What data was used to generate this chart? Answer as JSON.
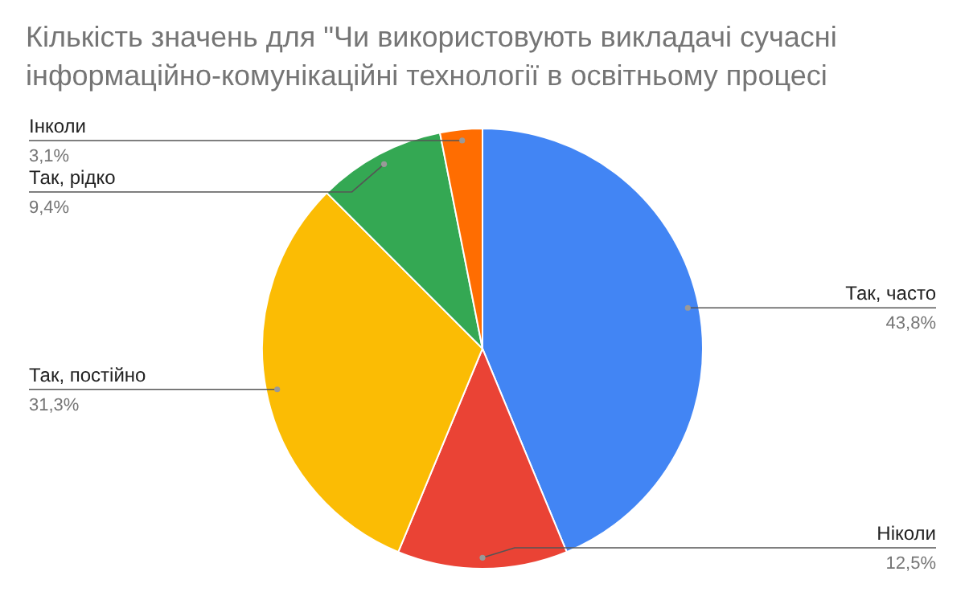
{
  "chart_data": {
    "type": "pie",
    "title": "Кількість значень для \"Чи використовують викладачі сучасні інформаційно-комунікаційні технології в освітньому процесі",
    "categories": [
      "Так, часто",
      "Ніколи",
      "Так, постійно",
      "Так, рідко",
      "Інколи"
    ],
    "values": [
      43.8,
      12.5,
      31.3,
      9.4,
      3.1
    ],
    "colors": [
      "#4285f4",
      "#ea4335",
      "#fbbc04",
      "#34a853",
      "#ff6d01"
    ],
    "value_labels": [
      "43,8%",
      "12,5%",
      "31,3%",
      "9,4%",
      "3,1%"
    ]
  }
}
